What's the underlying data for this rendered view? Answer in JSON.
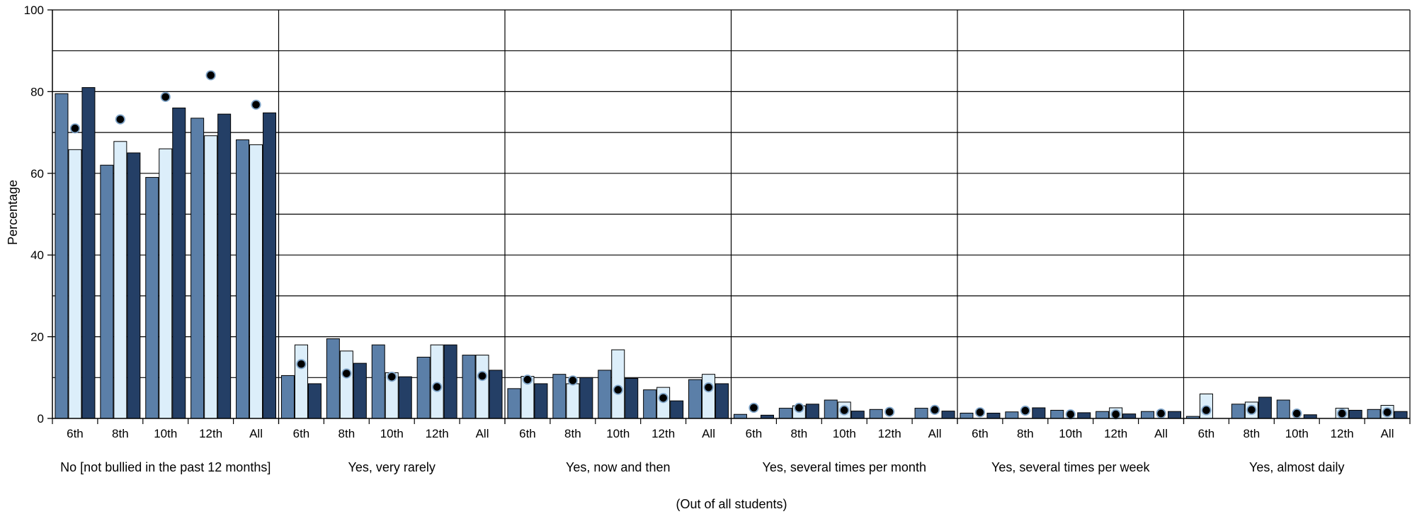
{
  "chart_data": {
    "type": "bar",
    "ylabel": "Percentage",
    "xlabel": "(Out of all students)",
    "ylim": [
      0,
      100
    ],
    "yticks": [
      "0",
      "20",
      "40",
      "60",
      "80",
      "100"
    ],
    "grid": "horizontal every 10, vertical between groups",
    "groups": [
      "No [not bullied in the past 12 months]",
      "Yes, very rarely",
      "Yes, now and then",
      "Yes, several times per month",
      "Yes, several times per week",
      "Yes, almost daily"
    ],
    "grades": [
      "6th",
      "8th",
      "10th",
      "12th",
      "All"
    ],
    "series": [
      {
        "color": "#5B7FA8",
        "values": [
          [
            79.5,
            62,
            59,
            73.5,
            68.2
          ],
          [
            10.5,
            19.5,
            18,
            15,
            15.5
          ],
          [
            7.3,
            10.8,
            11.8,
            7,
            9.5
          ],
          [
            1,
            2.5,
            4.5,
            2.2,
            2.5
          ],
          [
            1.3,
            1.6,
            2,
            1.7,
            1.7
          ],
          [
            0.5,
            3.5,
            4.5,
            0,
            2.2
          ]
        ]
      },
      {
        "color": "#DCEEFA",
        "values": [
          [
            65.8,
            67.8,
            66,
            69.2,
            67
          ],
          [
            18,
            16.5,
            11.2,
            18,
            15.5
          ],
          [
            10.3,
            8.5,
            16.8,
            7.6,
            10.8
          ],
          [
            0,
            3.1,
            4,
            0,
            0
          ],
          [
            0,
            0,
            0,
            2.6,
            0
          ],
          [
            6,
            4,
            0,
            2.5,
            3.2
          ]
        ]
      },
      {
        "color": "#243F66",
        "values": [
          [
            81,
            65,
            76,
            74.5,
            74.8
          ],
          [
            8.5,
            13.5,
            10.2,
            18,
            11.8
          ],
          [
            8.5,
            10,
            9.8,
            4.3,
            8.5
          ],
          [
            0.8,
            3.5,
            1.8,
            0,
            1.8
          ],
          [
            1.3,
            2.6,
            1.4,
            1.1,
            1.7
          ],
          [
            0,
            5.2,
            0.9,
            2,
            1.7
          ]
        ]
      }
    ],
    "markers": [
      [
        71,
        73.2,
        78.7,
        84,
        76.8
      ],
      [
        13.3,
        11,
        10.2,
        7.7,
        10.4
      ],
      [
        9.5,
        9.3,
        7,
        5,
        7.6
      ],
      [
        2.6,
        2.6,
        2,
        1.6,
        2.1
      ],
      [
        1.5,
        1.9,
        1,
        1,
        1.2
      ],
      [
        2,
        2.1,
        1.2,
        1.2,
        1.5
      ]
    ]
  }
}
